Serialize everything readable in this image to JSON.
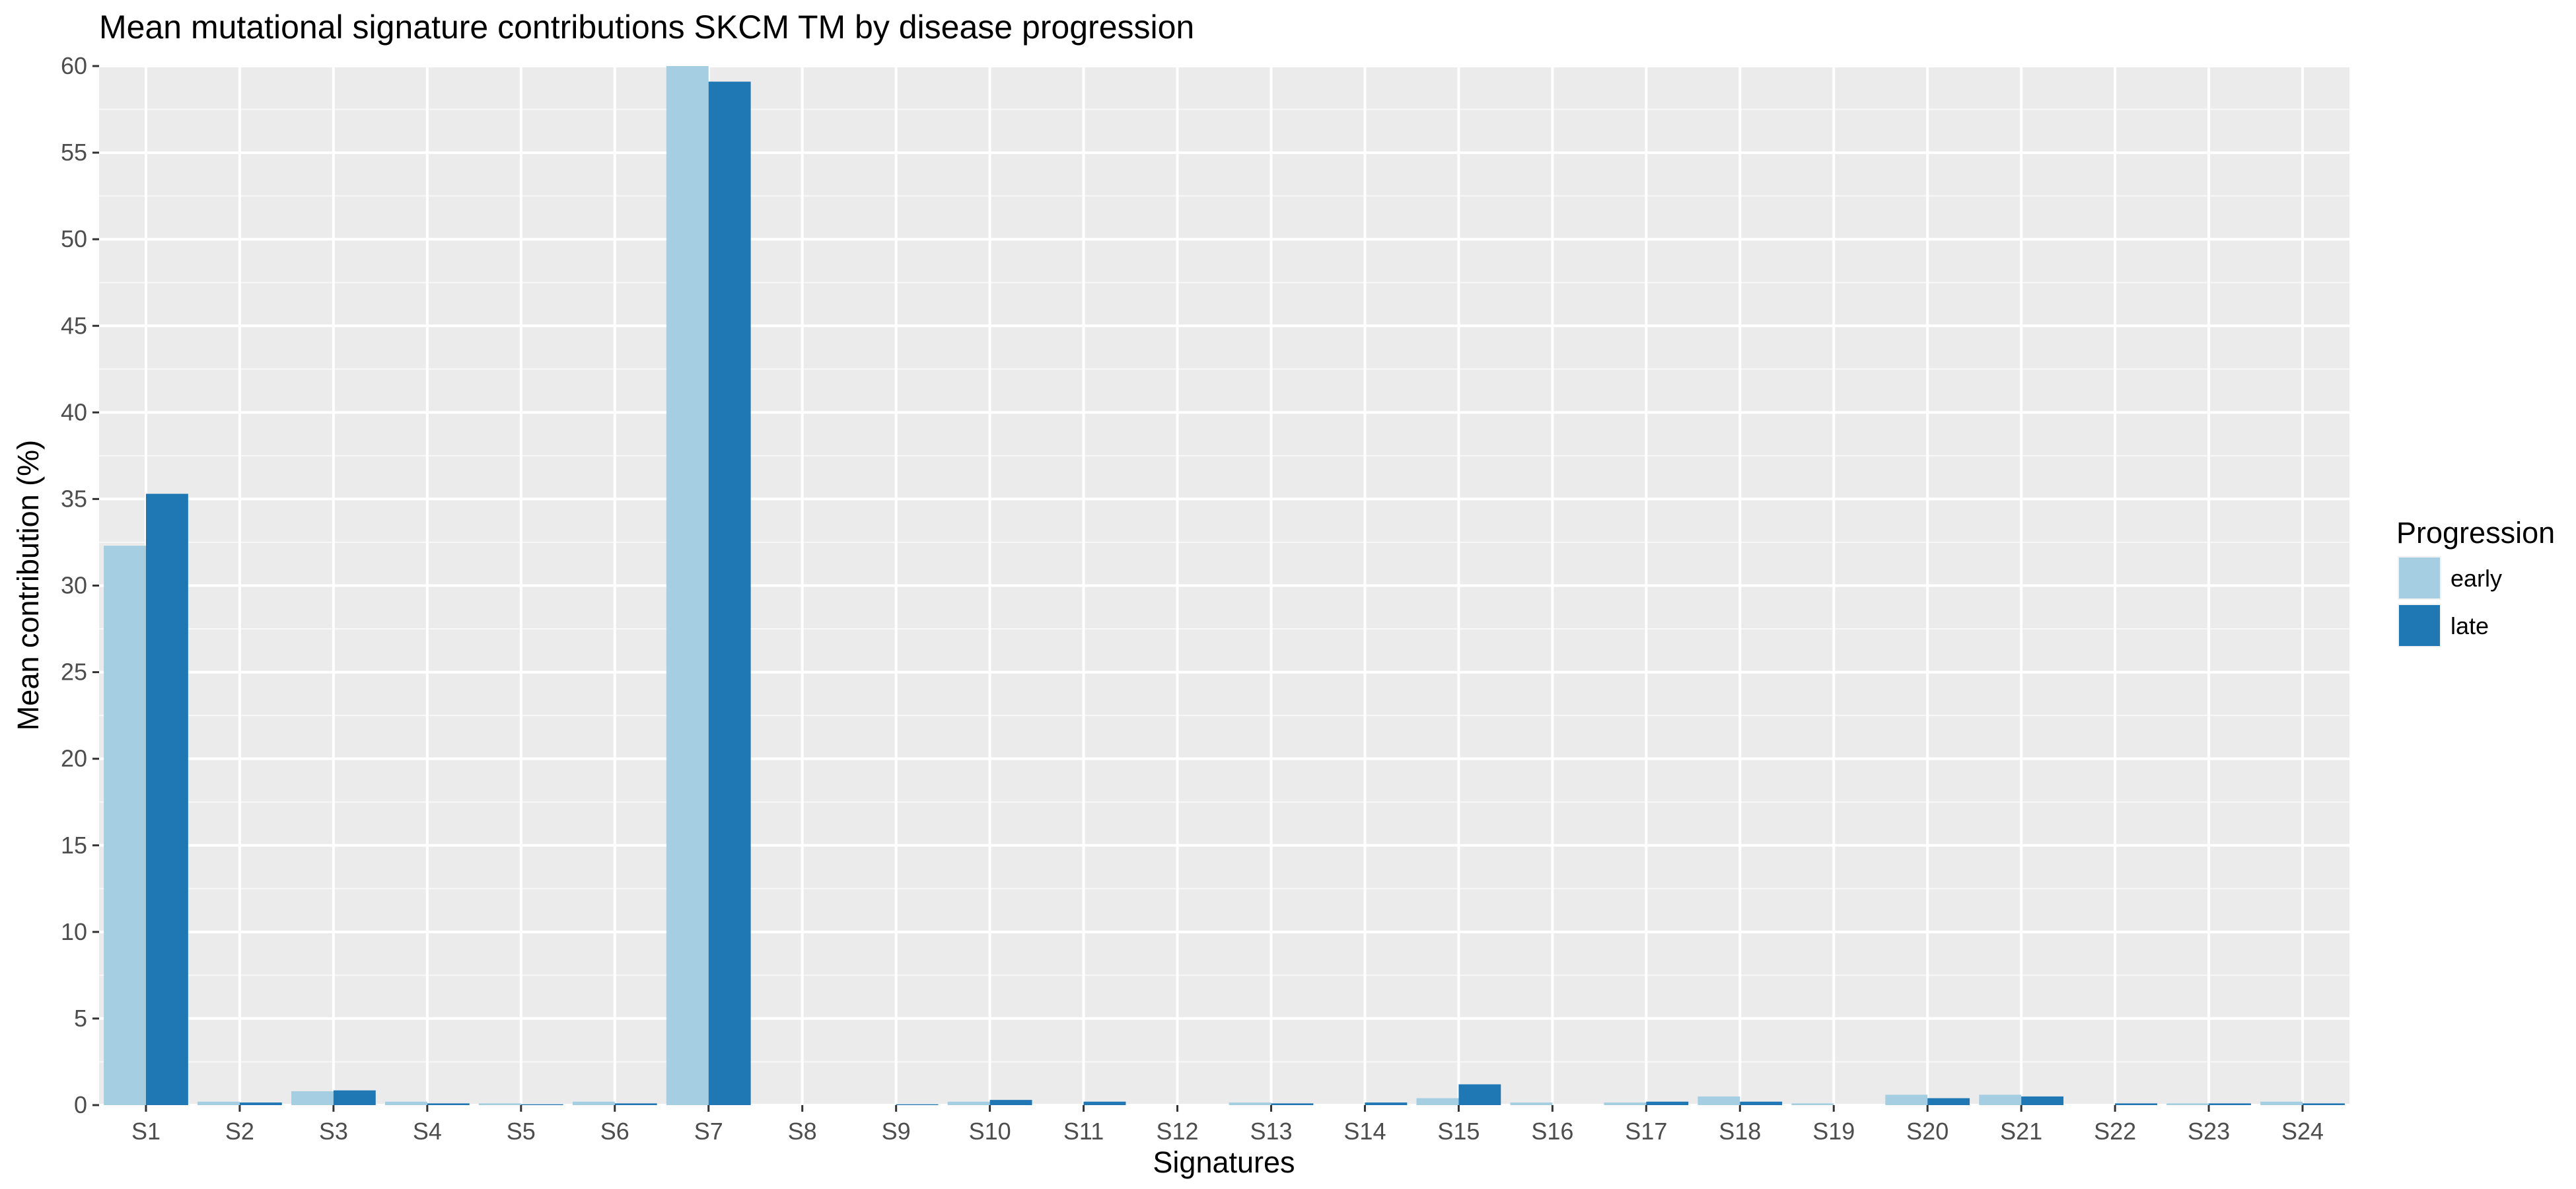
{
  "chart_data": {
    "type": "bar",
    "title": "Mean mutational signature contributions SKCM TM by disease progression",
    "xlabel": "Signatures",
    "ylabel": "Mean contribution (%)",
    "ylim": [
      0,
      60
    ],
    "yticks": [
      0,
      5,
      10,
      15,
      20,
      25,
      30,
      35,
      40,
      45,
      50,
      55,
      60
    ],
    "grid": true,
    "legend_position": "right",
    "legend_title": "Progression",
    "categories": [
      "S1",
      "S2",
      "S3",
      "S4",
      "S5",
      "S6",
      "S7",
      "S8",
      "S9",
      "S10",
      "S11",
      "S12",
      "S13",
      "S14",
      "S15",
      "S16",
      "S17",
      "S18",
      "S19",
      "S20",
      "S21",
      "S22",
      "S23",
      "S24"
    ],
    "series": [
      {
        "name": "early",
        "color": "#a6cee3",
        "values": [
          32.3,
          0.2,
          0.8,
          0.2,
          0.1,
          0.2,
          60.0,
          0.0,
          0.0,
          0.2,
          0.0,
          0.0,
          0.15,
          0.0,
          0.4,
          0.15,
          0.15,
          0.5,
          0.1,
          0.6,
          0.6,
          0.0,
          0.1,
          0.2
        ]
      },
      {
        "name": "late",
        "color": "#1f78b4",
        "values": [
          35.3,
          0.15,
          0.85,
          0.1,
          0.05,
          0.1,
          59.1,
          0.0,
          0.05,
          0.3,
          0.2,
          0.0,
          0.1,
          0.15,
          1.2,
          0.0,
          0.2,
          0.2,
          0.0,
          0.4,
          0.5,
          0.1,
          0.1,
          0.1
        ]
      }
    ]
  },
  "colors": {
    "panel_background": "#ebebeb",
    "grid_major": "#ffffff"
  }
}
